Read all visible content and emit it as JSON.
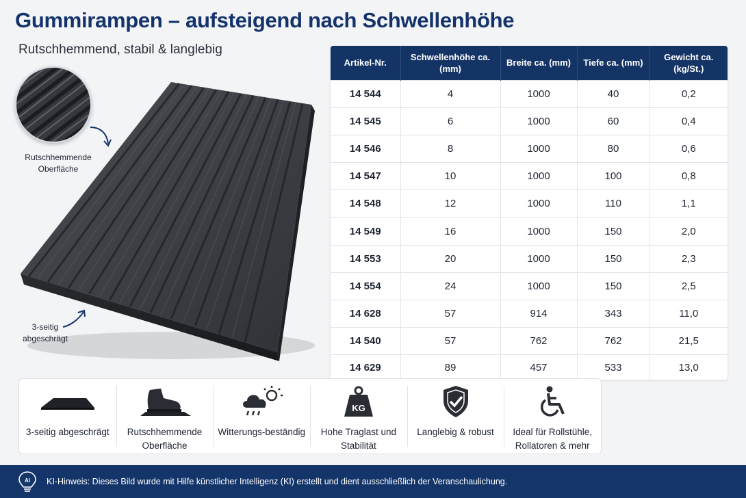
{
  "header": {
    "title": "Gummirampen – aufsteigend nach Schwellenhöhe",
    "subtitle": "Rutschhemmend, stabil & langlebig"
  },
  "product": {
    "surface_label": "Rutschhemmende Oberfläche",
    "bevel_label": "3-seitig abgeschrägt"
  },
  "table": {
    "headers": [
      "Artikel-Nr.",
      "Schwellenhöhe ca. (mm)",
      "Breite ca. (mm)",
      "Tiefe ca. (mm)",
      "Gewicht ca. (kg/St.)"
    ],
    "rows": [
      [
        "14 544",
        "4",
        "1000",
        "40",
        "0,2"
      ],
      [
        "14 545",
        "6",
        "1000",
        "60",
        "0,4"
      ],
      [
        "14 546",
        "8",
        "1000",
        "80",
        "0,6"
      ],
      [
        "14 547",
        "10",
        "1000",
        "100",
        "0,8"
      ],
      [
        "14 548",
        "12",
        "1000",
        "110",
        "1,1"
      ],
      [
        "14 549",
        "16",
        "1000",
        "150",
        "2,0"
      ],
      [
        "14 553",
        "20",
        "1000",
        "150",
        "2,3"
      ],
      [
        "14 554",
        "24",
        "1000",
        "150",
        "2,5"
      ],
      [
        "14 628",
        "57",
        "914",
        "343",
        "11,0"
      ],
      [
        "14 540",
        "57",
        "762",
        "762",
        "21,5"
      ],
      [
        "14 629",
        "89",
        "457",
        "533",
        "13,0"
      ]
    ]
  },
  "features": [
    {
      "icon": "ramp-icon",
      "label": "3-seitig abgeschrägt"
    },
    {
      "icon": "shoe-icon",
      "label": "Rutschhemmende Oberfläche"
    },
    {
      "icon": "weather-icon",
      "label": "Witterungs-beständig"
    },
    {
      "icon": "weight-icon",
      "label": "Hohe Traglast und Stabilität",
      "badge": "KG"
    },
    {
      "icon": "shield-check-icon",
      "label": "Langlebig & robust"
    },
    {
      "icon": "wheelchair-icon",
      "label": "Ideal für Rollstühle, Rollatoren & mehr"
    }
  ],
  "footer": {
    "icon": "ai-lightbulb-icon",
    "badge": "AI",
    "note": "KI-Hinweis: Dieses Bild wurde mit Hilfe künstlicher Intelligenz (KI) erstellt und dient ausschließlich der Veranschaulichung."
  }
}
